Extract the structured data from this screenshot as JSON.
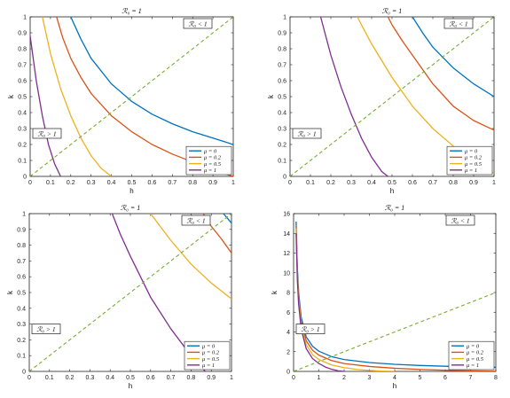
{
  "figure": {
    "legend_symbol": "μ",
    "colors": {
      "blue": "#0072BD",
      "orange": "#D95319",
      "yellow": "#EDB120",
      "purple": "#7E2F8E",
      "green": "#77AC30"
    }
  },
  "chart_data": [
    {
      "type": "line",
      "title": "ℛ₀ = 1",
      "xlabel": "h",
      "ylabel": "k",
      "xlim": [
        0,
        1
      ],
      "ylim": [
        0,
        1
      ],
      "xticks": [
        "0",
        "0.1",
        "0.2",
        "0.3",
        "0.4",
        "0.5",
        "0.6",
        "0.7",
        "0.8",
        "0.9",
        "1"
      ],
      "yticks": [
        "0",
        "0.1",
        "0.2",
        "0.3",
        "0.4",
        "0.5",
        "0.6",
        "0.7",
        "0.8",
        "0.9",
        "1"
      ],
      "region_labels": {
        "upper": "ℛ₀ < 1",
        "lower": "ℛ₀ > 1"
      },
      "legend_location": "lower-right",
      "series": [
        {
          "name": "μ = 0",
          "color": "#0072BD",
          "x": [
            0.2,
            0.25,
            0.3,
            0.4,
            0.5,
            0.6,
            0.7,
            0.8,
            0.9,
            1.0
          ],
          "y": [
            1.0,
            0.86,
            0.74,
            0.58,
            0.47,
            0.39,
            0.33,
            0.28,
            0.24,
            0.2
          ]
        },
        {
          "name": "μ = 0.2",
          "color": "#D95319",
          "x": [
            0.13,
            0.16,
            0.2,
            0.25,
            0.3,
            0.4,
            0.5,
            0.6,
            0.7,
            0.8,
            0.9,
            1.0
          ],
          "y": [
            1.0,
            0.87,
            0.74,
            0.62,
            0.52,
            0.38,
            0.28,
            0.2,
            0.14,
            0.09,
            0.04,
            0.0
          ]
        },
        {
          "name": "μ = 0.5",
          "color": "#EDB120",
          "x": [
            0.06,
            0.1,
            0.15,
            0.2,
            0.25,
            0.3,
            0.35,
            0.4
          ],
          "y": [
            1.0,
            0.77,
            0.55,
            0.38,
            0.24,
            0.13,
            0.05,
            0.0
          ]
        },
        {
          "name": "μ = 1",
          "color": "#7E2F8E",
          "x": [
            0.0,
            0.03,
            0.06,
            0.09,
            0.12,
            0.15
          ],
          "y": [
            0.88,
            0.6,
            0.38,
            0.2,
            0.08,
            0.0
          ]
        },
        {
          "name": "",
          "color": "#77AC30",
          "dashed": true,
          "x": [
            0,
            1
          ],
          "y": [
            0,
            1
          ]
        }
      ]
    },
    {
      "type": "line",
      "title": "ℛ₀ = 1",
      "xlabel": "h",
      "ylabel": "k",
      "xlim": [
        0,
        1
      ],
      "ylim": [
        0,
        1
      ],
      "xticks": [
        "0",
        "0.1",
        "0.2",
        "0.3",
        "0.4",
        "0.5",
        "0.6",
        "0.7",
        "0.8",
        "0.9",
        "1"
      ],
      "yticks": [
        "0",
        "0.1",
        "0.2",
        "0.3",
        "0.4",
        "0.5",
        "0.6",
        "0.7",
        "0.8",
        "0.9",
        "1"
      ],
      "region_labels": {
        "upper": "ℛ₀ < 1",
        "lower": "ℛ₀ > 1"
      },
      "legend_location": "lower-right",
      "series": [
        {
          "name": "μ = 0",
          "color": "#0072BD",
          "x": [
            0.6,
            0.65,
            0.7,
            0.8,
            0.9,
            1.0
          ],
          "y": [
            1.0,
            0.9,
            0.81,
            0.68,
            0.58,
            0.5
          ]
        },
        {
          "name": "μ = 0.2",
          "color": "#D95319",
          "x": [
            0.48,
            0.5,
            0.55,
            0.6,
            0.7,
            0.8,
            0.9,
            1.0
          ],
          "y": [
            1.0,
            0.95,
            0.85,
            0.76,
            0.58,
            0.44,
            0.35,
            0.29
          ]
        },
        {
          "name": "μ = 0.5",
          "color": "#EDB120",
          "x": [
            0.33,
            0.35,
            0.4,
            0.5,
            0.6,
            0.7,
            0.8,
            0.9,
            1.0
          ],
          "y": [
            1.0,
            0.95,
            0.83,
            0.62,
            0.44,
            0.3,
            0.19,
            0.09,
            0.02
          ]
        },
        {
          "name": "μ = 1",
          "color": "#7E2F8E",
          "x": [
            0.15,
            0.2,
            0.25,
            0.3,
            0.35,
            0.4,
            0.45,
            0.48
          ],
          "y": [
            1.0,
            0.76,
            0.56,
            0.39,
            0.24,
            0.12,
            0.03,
            0.0
          ]
        },
        {
          "name": "",
          "color": "#77AC30",
          "dashed": true,
          "x": [
            0,
            1
          ],
          "y": [
            0,
            1
          ]
        }
      ]
    },
    {
      "type": "line",
      "title": "ℛ₀ = 1",
      "xlabel": "h",
      "ylabel": "k",
      "xlim": [
        0,
        1
      ],
      "ylim": [
        0,
        1
      ],
      "xticks": [
        "0",
        "0.1",
        "0.2",
        "0.3",
        "0.4",
        "0.5",
        "0.6",
        "0.7",
        "0.8",
        "0.9",
        "1"
      ],
      "yticks": [
        "0",
        "0.1",
        "0.2",
        "0.3",
        "0.4",
        "0.5",
        "0.6",
        "0.7",
        "0.8",
        "0.9",
        "1"
      ],
      "region_labels": {
        "upper": "ℛ₀ < 1",
        "lower": "ℛ₀ > 1"
      },
      "legend_location": "lower-right",
      "series": [
        {
          "name": "μ = 0",
          "color": "#0072BD",
          "x": [
            0.96,
            0.98,
            1.0
          ],
          "y": [
            1.0,
            0.97,
            0.94
          ]
        },
        {
          "name": "μ = 0.2",
          "color": "#D95319",
          "x": [
            0.86,
            0.9,
            0.95,
            1.0
          ],
          "y": [
            1.0,
            0.92,
            0.84,
            0.75
          ]
        },
        {
          "name": "μ = 0.5",
          "color": "#EDB120",
          "x": [
            0.6,
            0.7,
            0.8,
            0.9,
            1.0
          ],
          "y": [
            1.0,
            0.83,
            0.68,
            0.56,
            0.46
          ]
        },
        {
          "name": "μ = 1",
          "color": "#7E2F8E",
          "x": [
            0.41,
            0.45,
            0.5,
            0.55,
            0.6,
            0.7,
            0.8,
            0.87
          ],
          "y": [
            1.0,
            0.87,
            0.73,
            0.6,
            0.47,
            0.27,
            0.1,
            0.0
          ]
        },
        {
          "name": "",
          "color": "#77AC30",
          "dashed": true,
          "x": [
            0,
            1
          ],
          "y": [
            0,
            1
          ]
        }
      ]
    },
    {
      "type": "line",
      "title": "ℛ₀ = 1",
      "xlabel": "h",
      "ylabel": "k",
      "xlim": [
        0,
        8
      ],
      "ylim": [
        0,
        16
      ],
      "xticks": [
        "0",
        "1",
        "2",
        "3",
        "4",
        "5",
        "6",
        "7",
        "8"
      ],
      "yticks": [
        "0",
        "2",
        "4",
        "6",
        "8",
        "10",
        "12",
        "14",
        "16"
      ],
      "region_labels": {
        "upper": "ℛ₀ < 1",
        "lower": "ℛ₀ > 1"
      },
      "legend_location": "lower-right",
      "series": [
        {
          "name": "μ = 0",
          "color": "#0072BD",
          "x": [
            0.1,
            0.15,
            0.2,
            0.3,
            0.5,
            0.75,
            1.0,
            1.5,
            2,
            3,
            4,
            5,
            6,
            7,
            8
          ],
          "y": [
            15.2,
            10.5,
            8.0,
            5.5,
            3.5,
            2.55,
            2.05,
            1.5,
            1.2,
            0.9,
            0.72,
            0.6,
            0.52,
            0.46,
            0.42
          ]
        },
        {
          "name": "μ = 0.2",
          "color": "#D95319",
          "x": [
            0.1,
            0.15,
            0.2,
            0.3,
            0.5,
            0.75,
            1.0,
            1.5,
            2,
            3,
            4,
            5,
            6,
            7,
            8
          ],
          "y": [
            14.8,
            10.0,
            7.6,
            5.1,
            3.1,
            2.15,
            1.65,
            1.1,
            0.8,
            0.5,
            0.32,
            0.2,
            0.12,
            0.06,
            0.02
          ]
        },
        {
          "name": "μ = 0.5",
          "color": "#EDB120",
          "x": [
            0.1,
            0.15,
            0.2,
            0.3,
            0.5,
            0.75,
            1.0,
            1.5,
            2,
            2.5,
            3,
            3.5,
            4
          ],
          "y": [
            14.5,
            9.6,
            7.2,
            4.7,
            2.7,
            1.7,
            1.2,
            0.65,
            0.38,
            0.2,
            0.1,
            0.03,
            0.0
          ]
        },
        {
          "name": "μ = 1",
          "color": "#7E2F8E",
          "x": [
            0.1,
            0.15,
            0.2,
            0.3,
            0.5,
            0.75,
            1.0,
            1.25,
            1.5,
            1.75,
            2.0
          ],
          "y": [
            14.0,
            9.2,
            6.8,
            4.3,
            2.3,
            1.3,
            0.8,
            0.45,
            0.22,
            0.07,
            0.0
          ]
        },
        {
          "name": "",
          "color": "#77AC30",
          "dashed": true,
          "x": [
            0,
            8
          ],
          "y": [
            0,
            8
          ]
        }
      ]
    }
  ]
}
